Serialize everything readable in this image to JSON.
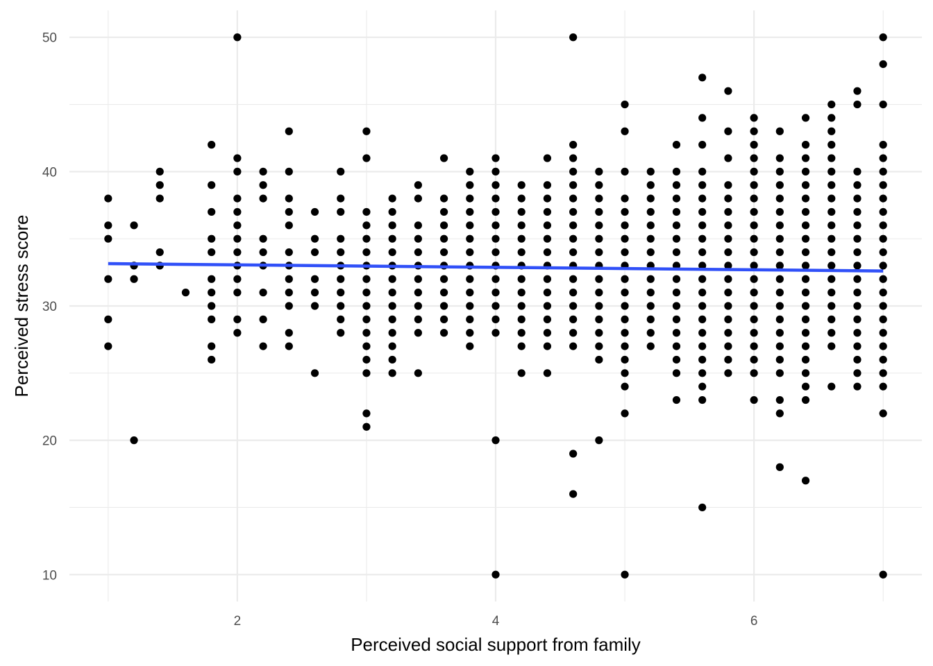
{
  "chart_data": {
    "type": "scatter",
    "title": "",
    "xlabel": "Perceived social support from family",
    "ylabel": "Perceived stress score",
    "xlim": [
      0.7,
      7.3
    ],
    "ylim": [
      8,
      52
    ],
    "x_ticks": [
      2,
      4,
      6
    ],
    "y_ticks": [
      10,
      20,
      30,
      40,
      50
    ],
    "grid": true,
    "legend": "none",
    "colors": {
      "points": "#000000",
      "fit_line": "#3050f8",
      "grid": "#ebebeb"
    },
    "trend_line": {
      "type": "linear",
      "x": [
        1.0,
        7.0
      ],
      "y": [
        33.15,
        32.6
      ]
    },
    "columns": [
      {
        "x": 1.0,
        "y": [
          38,
          36,
          35,
          32,
          29,
          27
        ]
      },
      {
        "x": 1.2,
        "y": [
          36,
          33,
          32,
          20
        ]
      },
      {
        "x": 1.4,
        "y": [
          40,
          39,
          38,
          34,
          33
        ]
      },
      {
        "x": 1.6,
        "y": [
          31
        ]
      },
      {
        "x": 1.8,
        "y": [
          42,
          39,
          37,
          35,
          34,
          32,
          31,
          30,
          29,
          27,
          26
        ]
      },
      {
        "x": 2.0,
        "y": [
          50,
          41,
          40,
          38,
          37,
          36,
          35,
          34,
          33,
          32,
          31,
          29,
          28
        ]
      },
      {
        "x": 2.2,
        "y": [
          40,
          39,
          38,
          35,
          34,
          33,
          31,
          29,
          27
        ]
      },
      {
        "x": 2.4,
        "y": [
          43,
          40,
          38,
          37,
          36,
          34,
          33,
          32,
          31,
          30,
          28,
          27
        ]
      },
      {
        "x": 2.6,
        "y": [
          37,
          35,
          34,
          32,
          31,
          30,
          25
        ]
      },
      {
        "x": 2.8,
        "y": [
          40,
          38,
          37,
          35,
          34,
          33,
          32,
          31,
          30,
          29,
          28
        ]
      },
      {
        "x": 3.0,
        "y": [
          43,
          41,
          37,
          36,
          35,
          34,
          33,
          32,
          31,
          30,
          29,
          28,
          27,
          26,
          25,
          22,
          21
        ]
      },
      {
        "x": 3.2,
        "y": [
          38,
          37,
          36,
          35,
          34,
          33,
          32,
          31,
          30,
          29,
          28,
          27,
          26,
          25
        ]
      },
      {
        "x": 3.4,
        "y": [
          39,
          38,
          36,
          35,
          34,
          33,
          32,
          31,
          30,
          29,
          28,
          25
        ]
      },
      {
        "x": 3.6,
        "y": [
          41,
          38,
          37,
          36,
          35,
          34,
          33,
          32,
          31,
          30,
          29,
          28
        ]
      },
      {
        "x": 3.8,
        "y": [
          40,
          39,
          38,
          37,
          36,
          35,
          34,
          33,
          32,
          31,
          30,
          29,
          28,
          27
        ]
      },
      {
        "x": 4.0,
        "y": [
          41,
          40,
          39,
          38,
          37,
          36,
          35,
          34,
          33,
          32,
          31,
          30,
          29,
          28,
          20,
          10
        ]
      },
      {
        "x": 4.2,
        "y": [
          39,
          38,
          37,
          36,
          35,
          34,
          33,
          32,
          31,
          30,
          29,
          28,
          27,
          25
        ]
      },
      {
        "x": 4.4,
        "y": [
          41,
          39,
          38,
          37,
          36,
          35,
          34,
          33,
          32,
          31,
          30,
          29,
          28,
          27,
          25
        ]
      },
      {
        "x": 4.6,
        "y": [
          50,
          42,
          41,
          40,
          39,
          38,
          37,
          36,
          35,
          34,
          33,
          32,
          31,
          30,
          29,
          28,
          27,
          19,
          16
        ]
      },
      {
        "x": 4.8,
        "y": [
          40,
          39,
          38,
          37,
          36,
          35,
          34,
          33,
          32,
          31,
          30,
          29,
          28,
          27,
          26,
          20
        ]
      },
      {
        "x": 5.0,
        "y": [
          45,
          43,
          40,
          38,
          37,
          36,
          35,
          34,
          33,
          32,
          31,
          30,
          29,
          28,
          27,
          26,
          25,
          24,
          22,
          10
        ]
      },
      {
        "x": 5.2,
        "y": [
          40,
          39,
          38,
          37,
          36,
          35,
          34,
          33,
          32,
          31,
          30,
          29,
          28,
          27
        ]
      },
      {
        "x": 5.4,
        "y": [
          42,
          40,
          39,
          38,
          37,
          36,
          35,
          34,
          33,
          32,
          31,
          30,
          29,
          28,
          27,
          26,
          25,
          23
        ]
      },
      {
        "x": 5.6,
        "y": [
          47,
          44,
          42,
          40,
          39,
          38,
          37,
          36,
          35,
          34,
          33,
          32,
          31,
          30,
          29,
          28,
          27,
          26,
          25,
          24,
          23,
          15
        ]
      },
      {
        "x": 5.8,
        "y": [
          46,
          43,
          41,
          39,
          38,
          37,
          36,
          35,
          34,
          33,
          32,
          31,
          30,
          29,
          28,
          27,
          26,
          25
        ]
      },
      {
        "x": 6.0,
        "y": [
          44,
          43,
          42,
          41,
          40,
          39,
          38,
          37,
          36,
          35,
          34,
          33,
          32,
          31,
          30,
          29,
          28,
          27,
          26,
          25,
          23
        ]
      },
      {
        "x": 6.2,
        "y": [
          43,
          41,
          40,
          39,
          38,
          37,
          36,
          35,
          34,
          33,
          32,
          31,
          30,
          29,
          28,
          27,
          26,
          25,
          23,
          22,
          18
        ]
      },
      {
        "x": 6.4,
        "y": [
          44,
          42,
          41,
          40,
          39,
          38,
          37,
          36,
          35,
          34,
          33,
          32,
          31,
          30,
          29,
          28,
          27,
          26,
          25,
          24,
          23,
          17
        ]
      },
      {
        "x": 6.6,
        "y": [
          45,
          44,
          43,
          42,
          41,
          40,
          39,
          38,
          37,
          36,
          35,
          34,
          33,
          32,
          31,
          30,
          29,
          28,
          27,
          24
        ]
      },
      {
        "x": 6.8,
        "y": [
          46,
          45,
          40,
          39,
          38,
          37,
          36,
          35,
          34,
          33,
          32,
          31,
          30,
          29,
          28,
          27,
          26,
          25,
          24
        ]
      },
      {
        "x": 7.0,
        "y": [
          50,
          48,
          45,
          42,
          41,
          40,
          39,
          38,
          37,
          36,
          35,
          34,
          33,
          32,
          31,
          30,
          29,
          28,
          27,
          26,
          25,
          24,
          22,
          10
        ]
      }
    ]
  }
}
